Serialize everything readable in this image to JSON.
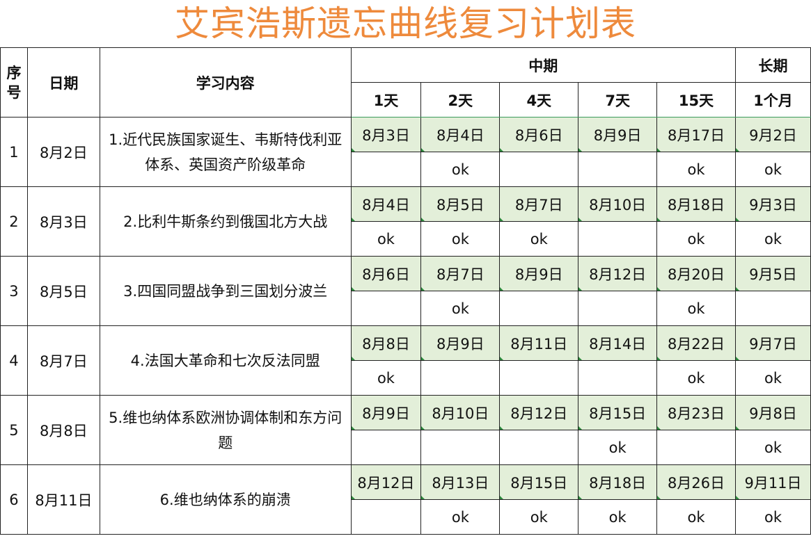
{
  "title": "艾宾浩斯遗忘曲线复习计划表",
  "colors": {
    "title": "#ee8a3c",
    "date_cell_bg": "#e3efd9",
    "border": "#222222",
    "header_rule": "#3a9a5a"
  },
  "headers": {
    "seq_line1": "序",
    "seq_line2": "号",
    "date": "日期",
    "content": "学习内容",
    "mid_term": "中期",
    "long_term": "长期",
    "intervals": [
      "1天",
      "2天",
      "4天",
      "7天",
      "15天",
      "1个月"
    ]
  },
  "rows": [
    {
      "seq": "1",
      "date": "8月2日",
      "content": "1.近代民族国家诞生、韦斯特伐利亚体系、英国资产阶级革命",
      "reviews": [
        "8月3日",
        "8月4日",
        "8月6日",
        "8月9日",
        "8月17日",
        "9月2日"
      ],
      "checks": [
        "",
        "ok",
        "",
        "",
        "ok",
        "ok"
      ]
    },
    {
      "seq": "2",
      "date": "8月3日",
      "content": "2.比利牛斯条约到俄国北方大战",
      "reviews": [
        "8月4日",
        "8月5日",
        "8月7日",
        "8月10日",
        "8月18日",
        "9月3日"
      ],
      "checks": [
        "ok",
        "ok",
        "ok",
        "",
        "ok",
        "ok"
      ]
    },
    {
      "seq": "3",
      "date": "8月5日",
      "content": "3.四国同盟战争到三国划分波兰",
      "reviews": [
        "8月6日",
        "8月7日",
        "8月9日",
        "8月12日",
        "8月20日",
        "9月5日"
      ],
      "checks": [
        "",
        "ok",
        "",
        "",
        "ok",
        ""
      ]
    },
    {
      "seq": "4",
      "date": "8月7日",
      "content": "4.法国大革命和七次反法同盟",
      "reviews": [
        "8月8日",
        "8月9日",
        "8月11日",
        "8月14日",
        "8月22日",
        "9月7日"
      ],
      "checks": [
        "ok",
        "",
        "",
        "",
        "ok",
        "ok"
      ]
    },
    {
      "seq": "5",
      "date": "8月8日",
      "content": "5.维也纳体系欧洲协调体制和东方问题",
      "reviews": [
        "8月9日",
        "8月10日",
        "8月12日",
        "8月15日",
        "8月23日",
        "9月8日"
      ],
      "checks": [
        "",
        "",
        "",
        "ok",
        "",
        "ok"
      ]
    },
    {
      "seq": "6",
      "date": "8月11日",
      "content": "6.维也纳体系的崩溃",
      "reviews": [
        "8月12日",
        "8月13日",
        "8月15日",
        "8月18日",
        "8月26日",
        "9月11日"
      ],
      "checks": [
        "",
        "ok",
        "ok",
        "ok",
        "ok",
        "ok"
      ]
    }
  ]
}
